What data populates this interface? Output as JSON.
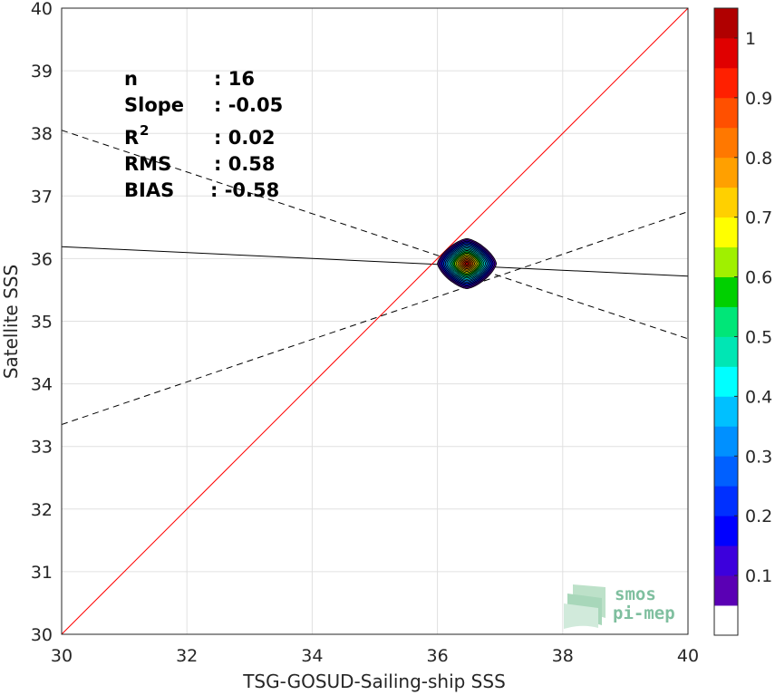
{
  "chart_data": {
    "type": "density-scatter",
    "xlabel": "TSG-GOSUD-Sailing-ship SSS",
    "ylabel": "Satellite SSS",
    "xlim": [
      30,
      40
    ],
    "ylim": [
      30,
      40
    ],
    "xticks": [
      30,
      32,
      34,
      36,
      38,
      40
    ],
    "yticks": [
      30,
      31,
      32,
      33,
      34,
      35,
      36,
      37,
      38,
      39,
      40
    ],
    "grid": true,
    "stats": [
      {
        "label": "n",
        "value": ": 16"
      },
      {
        "label": "Slope",
        "value": ": -0.05"
      },
      {
        "label": "R",
        "sup": "2",
        "value": ": 0.02"
      },
      {
        "label": "RMS",
        "value": ": 0.58"
      },
      {
        "label": "BIAS",
        "value": ": -0.58"
      }
    ],
    "lines": {
      "identity": {
        "points": [
          [
            30,
            30
          ],
          [
            40,
            40
          ]
        ],
        "color": "#ff0000"
      },
      "regression": {
        "points": [
          [
            30,
            36.19
          ],
          [
            40,
            35.72
          ]
        ],
        "color": "#000000"
      },
      "confidence_upper": {
        "points": [
          [
            30,
            38.05
          ],
          [
            40,
            34.72
          ]
        ],
        "dash": true
      },
      "confidence_lower": {
        "points": [
          [
            30,
            33.35
          ],
          [
            40,
            36.75
          ]
        ],
        "dash": true
      }
    },
    "density_center": [
      36.47,
      35.92
    ],
    "density_extent": [
      0.47,
      0.4
    ],
    "density_levels": [
      0.05,
      0.1,
      0.15,
      0.2,
      0.25,
      0.3,
      0.35,
      0.4,
      0.45,
      0.5,
      0.55,
      0.6,
      0.65,
      0.7,
      0.75,
      0.8,
      0.85,
      0.9,
      0.95
    ],
    "colorbar": {
      "ticks": [
        "0.1",
        "0.2",
        "0.3",
        "0.4",
        "0.5",
        "0.6",
        "0.7",
        "0.8",
        "0.9",
        "1"
      ],
      "colors": [
        "#ffffff",
        "#5a00b4",
        "#3c00dc",
        "#0000ff",
        "#0030ff",
        "#0060ff",
        "#0090ff",
        "#00c0ff",
        "#00ffff",
        "#00e6b4",
        "#00e678",
        "#00d000",
        "#a0f000",
        "#ffff00",
        "#ffd000",
        "#ffa000",
        "#ff7800",
        "#ff5000",
        "#ff2000",
        "#e00000",
        "#b00000"
      ]
    }
  },
  "logo": {
    "line1": "smos",
    "line2": "pi-mep"
  }
}
